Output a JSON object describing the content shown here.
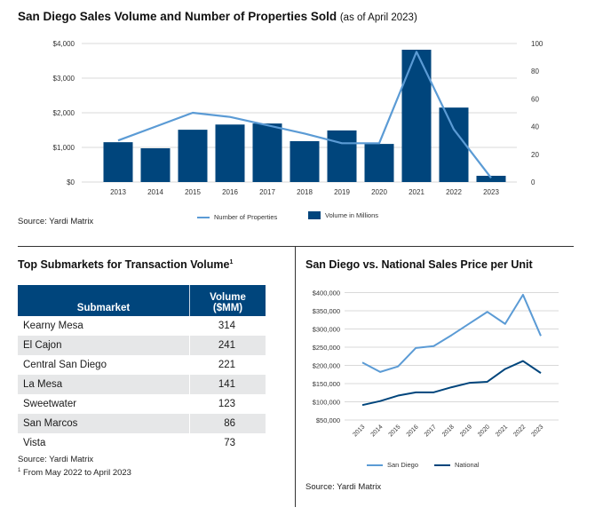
{
  "top_chart": {
    "title": "San Diego Sales Volume and Number of Properties Sold",
    "title_note": "(as of April 2023)",
    "source": "Source: Yardi Matrix",
    "legend": [
      "Number of Properties",
      "Volume in Millions"
    ]
  },
  "table": {
    "title": "Top Submarkets for Transaction Volume",
    "title_sup": "1",
    "headers": [
      "Submarket",
      "Volume",
      "($MM)"
    ],
    "rows": [
      {
        "name": "Kearny Mesa",
        "value": "314"
      },
      {
        "name": "El Cajon",
        "value": "241"
      },
      {
        "name": "Central San Diego",
        "value": "221"
      },
      {
        "name": "La Mesa",
        "value": "141"
      },
      {
        "name": "Sweetwater",
        "value": "123"
      },
      {
        "name": "San Marcos",
        "value": "86"
      },
      {
        "name": "Vista",
        "value": "73"
      }
    ],
    "source": "Source: Yardi Matrix",
    "footnote_mark": "1",
    "footnote": "From May 2022 to April 2023"
  },
  "price_chart": {
    "title": "San Diego vs. National Sales Price per Unit",
    "source": "Source: Yardi Matrix",
    "legend": [
      "San Diego",
      "National"
    ]
  },
  "colors": {
    "navy": "#00457c",
    "light_blue": "#5b9bd5",
    "grid": "#d9d9d9",
    "row_alt": "#e6e7e8"
  },
  "chart_data": [
    {
      "type": "bar",
      "title": "San Diego Sales Volume and Number of Properties Sold (as of April 2023)",
      "categories": [
        "2013",
        "2014",
        "2015",
        "2016",
        "2017",
        "2018",
        "2019",
        "2020",
        "2021",
        "2022",
        "2023"
      ],
      "series": [
        {
          "name": "Volume in Millions",
          "type": "bar",
          "axis": "left",
          "values": [
            1150,
            975,
            1510,
            1660,
            1690,
            1180,
            1490,
            1100,
            3820,
            2150,
            180
          ]
        },
        {
          "name": "Number of Properties",
          "type": "line",
          "axis": "right",
          "values": [
            30,
            40,
            50,
            47,
            41,
            35,
            28,
            28,
            94,
            38,
            3
          ]
        }
      ],
      "y_left": {
        "ylim": [
          0,
          4000
        ],
        "ticks": [
          "$0",
          "$1,000",
          "$2,000",
          "$3,000",
          "$4,000"
        ],
        "tick_values": [
          0,
          1000,
          2000,
          3000,
          4000
        ]
      },
      "y_right": {
        "ylim": [
          0,
          100
        ],
        "ticks": [
          "0",
          "20",
          "40",
          "60",
          "80",
          "100"
        ],
        "tick_values": [
          0,
          20,
          40,
          60,
          80,
          100
        ]
      },
      "xlabel": "",
      "ylabel": "",
      "grid": true,
      "legend_position": "bottom"
    },
    {
      "type": "line",
      "title": "San Diego vs. National Sales Price per Unit",
      "x": [
        "2013",
        "2014",
        "2015",
        "2016",
        "2017",
        "2018",
        "2019",
        "2020",
        "2021",
        "2022",
        "2023"
      ],
      "series": [
        {
          "name": "San Diego",
          "values": [
            208000,
            182000,
            197000,
            248000,
            253000,
            283000,
            315000,
            347000,
            314000,
            394000,
            281000
          ]
        },
        {
          "name": "National",
          "values": [
            91000,
            102000,
            117000,
            126000,
            126000,
            140000,
            152000,
            155000,
            190000,
            212000,
            179000
          ]
        }
      ],
      "ylim": [
        50000,
        400000
      ],
      "y_ticks": [
        "$50,000",
        "$100,000",
        "$150,000",
        "$200,000",
        "$250,000",
        "$300,000",
        "$350,000",
        "$400,000"
      ],
      "y_tick_values": [
        50000,
        100000,
        150000,
        200000,
        250000,
        300000,
        350000,
        400000
      ],
      "xlabel": "",
      "ylabel": "",
      "grid": true,
      "legend_position": "bottom"
    }
  ]
}
